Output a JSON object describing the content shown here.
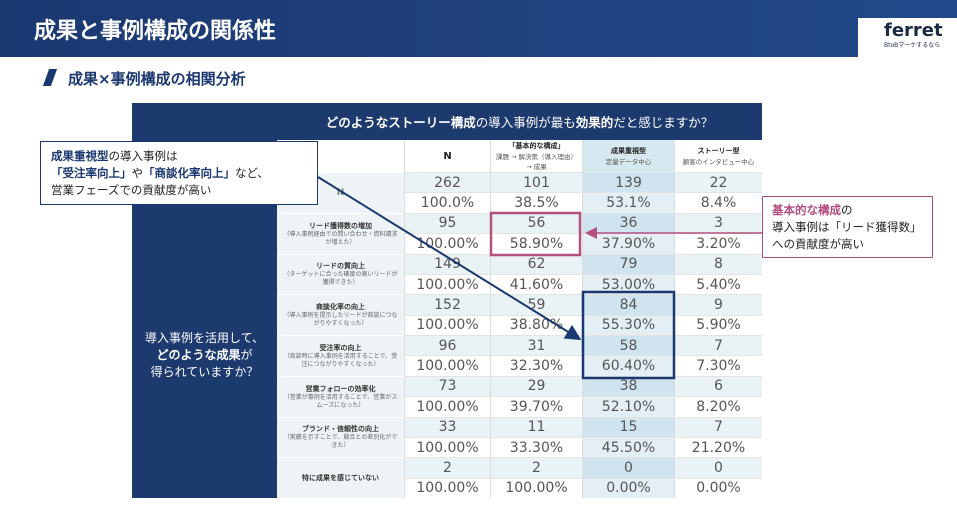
{
  "header": {
    "title": "成果と事例構成の関係性",
    "logo": "ferret",
    "logo_tagline": "BtoBマーケするなら"
  },
  "subtitle": "成果×事例構成の相関分析",
  "table": {
    "question": [
      {
        "text": "どのようなストーリー構成",
        "strong": true
      },
      {
        "text": "の導入事例が最も"
      },
      {
        "text": "効果的",
        "strong": true
      },
      {
        "text": "だと感じますか？"
      }
    ],
    "side_label": [
      [
        {
          "text": "導入事例を活用して、"
        }
      ],
      [
        {
          "text": "どのような成果",
          "strong": true
        },
        {
          "text": "が"
        }
      ],
      [
        {
          "text": "得られていますか？"
        }
      ]
    ],
    "columns": [
      {
        "title": "N"
      },
      {
        "title": "「基本的な構成」",
        "sub": "課題 → 解決策（導入理由）→ 成果"
      },
      {
        "title": "成果重視型",
        "sub": "定量データ中心"
      },
      {
        "title": "ストーリー型",
        "sub": "顧客のインタビュー中心"
      }
    ],
    "rows": [
      {
        "label": "N",
        "counts": [
          "262",
          "101",
          "139",
          "22"
        ],
        "percents": [
          "100.0%",
          "38.5%",
          "53.1%",
          "8.4%"
        ]
      },
      {
        "label": "リード獲得数の増加",
        "note": "（導入事例経由での問い合わせ・資料請求が増えた）",
        "counts": [
          "95",
          "56",
          "36",
          "3"
        ],
        "percents": [
          "100.00%",
          "58.90%",
          "37.90%",
          "3.20%"
        ]
      },
      {
        "label": "リードの質向上",
        "note": "（ターゲットに合った確度の高いリードが獲得できた）",
        "counts": [
          "149",
          "62",
          "79",
          "8"
        ],
        "percents": [
          "100.00%",
          "41.60%",
          "53.00%",
          "5.40%"
        ]
      },
      {
        "label": "商談化率の向上",
        "note": "（導入事例を提示したリードが商談につながりやすくなった）",
        "counts": [
          "152",
          "59",
          "84",
          "9"
        ],
        "percents": [
          "100.00%",
          "38.80%",
          "55.30%",
          "5.90%"
        ]
      },
      {
        "label": "受注率の向上",
        "note": "（商談時に導入事例を活用することで、受注につながりやすくなった）",
        "counts": [
          "96",
          "31",
          "58",
          "7"
        ],
        "percents": [
          "100.00%",
          "32.30%",
          "60.40%",
          "7.30%"
        ]
      },
      {
        "label": "営業フォローの効率化",
        "note": "（営業が事例を活用することで、営業がスムーズになった）",
        "counts": [
          "73",
          "29",
          "38",
          "6"
        ],
        "percents": [
          "100.00%",
          "39.70%",
          "52.10%",
          "8.20%"
        ]
      },
      {
        "label": "ブランド・信頼性の向上",
        "note": "（実績を示すことで、競合との差別化ができた）",
        "counts": [
          "33",
          "11",
          "15",
          "7"
        ],
        "percents": [
          "100.00%",
          "33.30%",
          "45.50%",
          "21.20%"
        ]
      },
      {
        "label": "特に成果を感じていない",
        "counts": [
          "2",
          "2",
          "0",
          "0"
        ],
        "percents": [
          "100.00%",
          "100.00%",
          "0.00%",
          "0.00%"
        ]
      }
    ]
  },
  "callouts": {
    "left": [
      [
        {
          "text": "成果重視型",
          "strong": true
        },
        {
          "text": "の導入事例は"
        }
      ],
      [
        {
          "text": "「受注率向上」",
          "strong": true
        },
        {
          "text": "や"
        },
        {
          "text": "「商談化率向上」",
          "strong": true
        },
        {
          "text": "など、"
        }
      ],
      [
        {
          "text": "営業フェーズでの貢献度が高い"
        }
      ]
    ],
    "right": [
      [
        {
          "text": "基本的な構成",
          "strong": true
        },
        {
          "text": "の"
        }
      ],
      [
        {
          "text": "導入事例は「リード獲得数」"
        }
      ],
      [
        {
          "text": "への貢献度が高い"
        }
      ]
    ]
  }
}
